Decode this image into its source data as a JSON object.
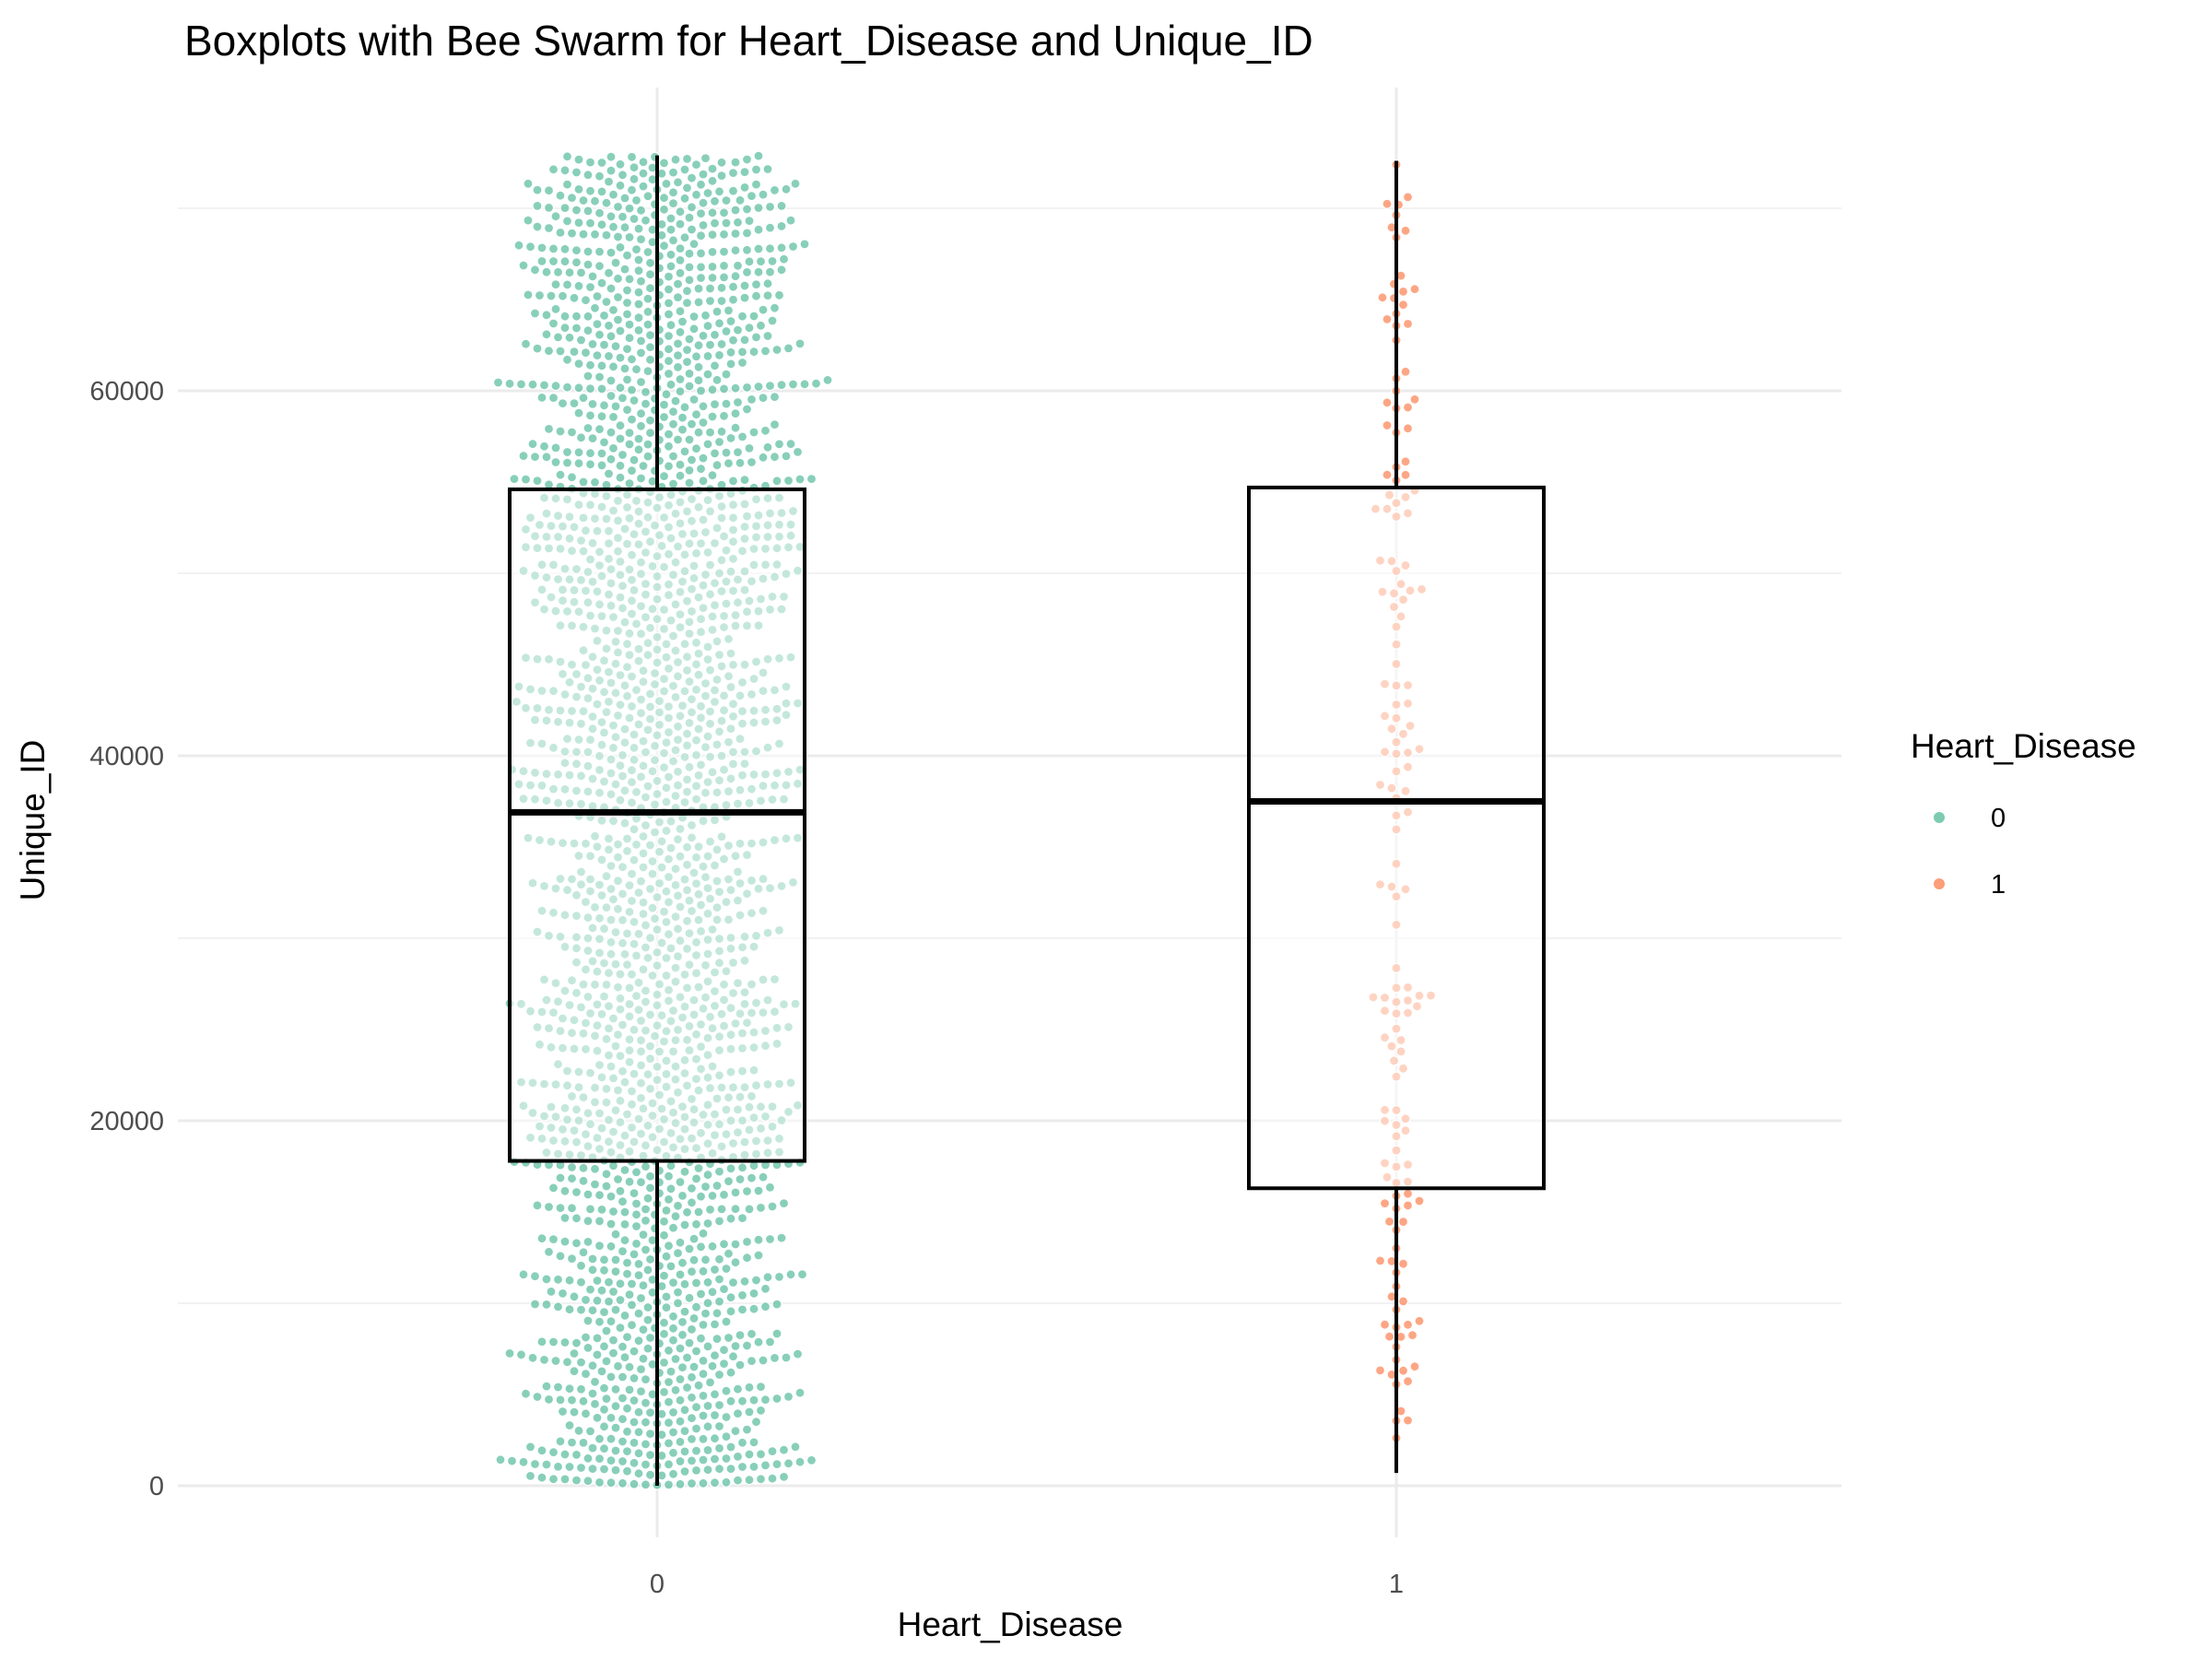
{
  "chart_data": {
    "type": "boxplot",
    "title": "Boxplots with Bee Swarm for Heart_Disease and Unique_ID",
    "xlabel": "Heart_Disease",
    "ylabel": "Unique_ID",
    "categories": [
      "0",
      "1"
    ],
    "ylim": [
      -2500,
      75500
    ],
    "y_ticks": [
      0,
      20000,
      40000,
      60000
    ],
    "y_tick_labels": [
      "0",
      "20000",
      "40000",
      "60000"
    ],
    "grid": true,
    "legend": {
      "title": "Heart_Disease",
      "position": "right",
      "entries": [
        {
          "label": "0",
          "color": "#66c2a5"
        },
        {
          "label": "1",
          "color": "#fc8d62"
        }
      ]
    },
    "boxes": [
      {
        "category": "0",
        "min": 0,
        "q1": 17800,
        "median": 36900,
        "q3": 54600,
        "max": 72900,
        "color": "#66c2a5",
        "approx_points": 2300
      },
      {
        "category": "1",
        "min": 700,
        "q1": 16300,
        "median": 37500,
        "q3": 54700,
        "max": 72600,
        "color": "#fc8d62",
        "approx_points": 160
      }
    ]
  }
}
